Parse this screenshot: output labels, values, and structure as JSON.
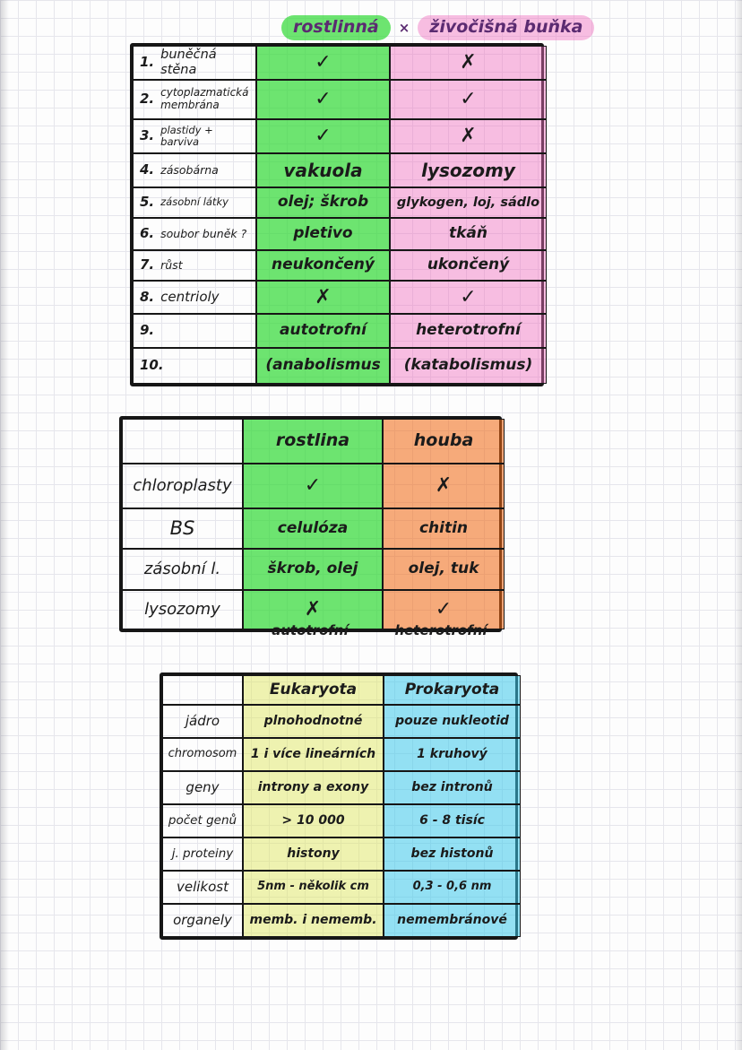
{
  "title": {
    "left": "rostlinná",
    "separator": "×",
    "right": "živočišná buňka"
  },
  "table1": {
    "rows": [
      {
        "num": "1.",
        "label": "buněčná stěna",
        "plant": "✓",
        "animal": "✗"
      },
      {
        "num": "2.",
        "label": "cytoplazmatická membrána",
        "plant": "✓",
        "animal": "✓"
      },
      {
        "num": "3.",
        "label": "plastidy + barviva",
        "plant": "✓",
        "animal": "✗"
      },
      {
        "num": "4.",
        "label": "zásobárna",
        "plant": "vakuola",
        "animal": "lysozomy"
      },
      {
        "num": "5.",
        "label": "zásobní látky",
        "plant": "olej; škrob",
        "animal": "glykogen, loj, sádlo"
      },
      {
        "num": "6.",
        "label": "soubor buněk ?",
        "plant": "pletivo",
        "animal": "tkáň"
      },
      {
        "num": "7.",
        "label": "růst",
        "plant": "neukončený",
        "animal": "ukončený"
      },
      {
        "num": "8.",
        "label": "centrioly",
        "plant": "✗",
        "animal": "✓"
      },
      {
        "num": "9.",
        "label": "",
        "plant": "autotrofní",
        "animal": "heterotrofní"
      },
      {
        "num": "10.",
        "label": "",
        "plant": "(anabolismus",
        "animal": "(katabolismus)"
      }
    ]
  },
  "table2": {
    "headers": {
      "col1": "rostlina",
      "col2": "houba"
    },
    "rows": [
      {
        "label": "chloroplasty",
        "plant": "✓",
        "fungus": "✗"
      },
      {
        "label": "BS",
        "plant": "celulóza",
        "fungus": "chitin"
      },
      {
        "label": "zásobní l.",
        "plant": "škrob, olej",
        "fungus": "olej, tuk"
      },
      {
        "label": "lysozomy",
        "plant": "✗",
        "fungus": "✓"
      }
    ],
    "footers": {
      "plant": "autotrofní",
      "fungus": "heterotrofní"
    }
  },
  "table3": {
    "headers": {
      "col1": "Eukaryota",
      "col2": "Prokaryota"
    },
    "rows": [
      {
        "label": "jádro",
        "eu": "plnohodnotné",
        "pro": "pouze nukleotid"
      },
      {
        "label": "chromosom",
        "eu": "1 i více lineárních",
        "pro": "1 kruhový"
      },
      {
        "label": "geny",
        "eu": "introny a exony",
        "pro": "bez intronů"
      },
      {
        "label": "počet genů",
        "eu": "> 10 000",
        "pro": "6 - 8 tisíc"
      },
      {
        "label": "j. proteiny",
        "eu": "histony",
        "pro": "bez histonů"
      },
      {
        "label": "velikost",
        "eu": "5nm - několik cm",
        "pro": "0,3 - 0,6 nm"
      },
      {
        "label": "organely",
        "eu": "memb. i nememb.",
        "pro": "nemembránové"
      }
    ]
  },
  "colors": {
    "green": "#77e877",
    "pink": "#f8c6e6",
    "orange": "#f2a36e",
    "yellow": "#eef1b4",
    "cyan": "#8adef0",
    "ink": "#1b1b1b",
    "title_ink": "#5b2b71"
  }
}
